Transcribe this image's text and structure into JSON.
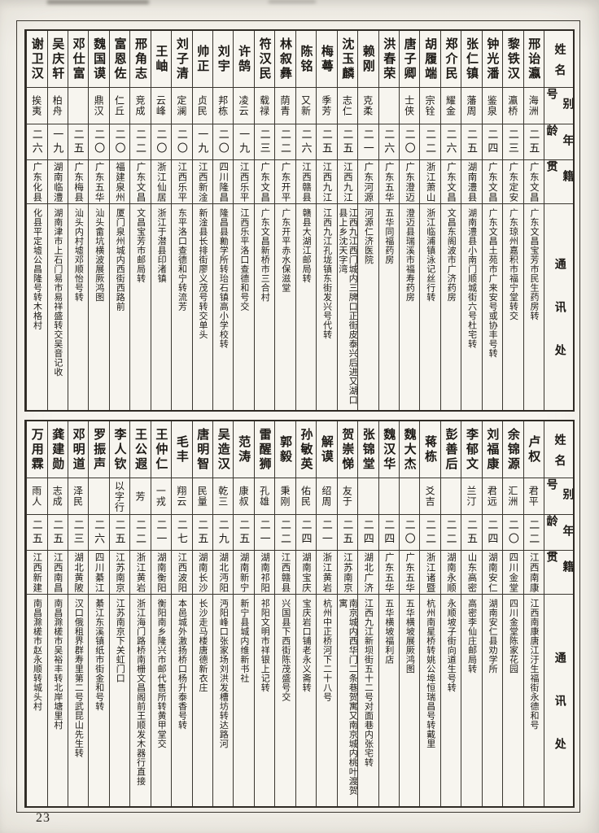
{
  "page": {
    "number": "23"
  },
  "headers": {
    "name": "姓名",
    "alias": "别号",
    "age": "年龄",
    "native": "籍贯",
    "address": "通讯处"
  },
  "sections": [
    {
      "people": [
        {
          "name": "邢诒瀛",
          "alias": "海洲",
          "age": "二五",
          "native": "广东文昌",
          "address": "广东文昌宝芳市民生药房转"
        },
        {
          "name": "黎铁汉",
          "alias": "瀛桥",
          "age": "二三",
          "native": "广东定安",
          "address": "广东琼州嘉积市福宁堂转交"
        },
        {
          "name": "钟光潘",
          "alias": "鉴泉",
          "age": "二四",
          "native": "广东文昌",
          "address": "广东文昌土苑市广来安号或协丰号转"
        },
        {
          "name": "张仁镇",
          "alias": "藩周",
          "age": "二五",
          "native": "湖南澧县",
          "address": "湖南澧县小南门顺城街六号杜宅转"
        },
        {
          "name": "郑介民",
          "alias": "耀金",
          "age": "二六",
          "native": "广东文昌",
          "address": "文昌东阁波市广济药房"
        },
        {
          "name": "胡履端",
          "alias": "宗铨",
          "age": "二二",
          "native": "浙江萧山",
          "address": "浙江临浦镇泳记丝行转"
        },
        {
          "name": "唐子卿",
          "alias": "士侠",
          "age": "二〇",
          "native": "广东澄迈",
          "address": "澄迈县瑞溪市福寿药房"
        },
        {
          "name": "洪春荣",
          "alias": "",
          "age": "二六",
          "native": "广东五华",
          "address": "五华同福药房"
        },
        {
          "name": "赖刚",
          "alias": "克柔",
          "age": "二一",
          "native": "广东河源",
          "address": "河源仁济医院"
        },
        {
          "name": "沈玉麟",
          "alias": "志仁",
          "age": "二五",
          "native": "江西九江",
          "address": "江西九江西门城内三牌口正街皮泰兴后进又湖口县上乡沈天字湾"
        },
        {
          "name": "梅蕚",
          "alias": "季芳",
          "age": "二五",
          "native": "江西九江",
          "address": "江西九江孔垅镇东街发兴号代转"
        },
        {
          "name": "陈铭",
          "alias": "又新",
          "age": "二六",
          "native": "江西赣县",
          "address": "赣县大湖江邮局转"
        },
        {
          "name": "林叙彝",
          "alias": "荫青",
          "age": "二二",
          "native": "广东开平",
          "address": "广东开平赤水保滋堂"
        },
        {
          "name": "符汉民",
          "alias": "载禄",
          "age": "二三",
          "native": "广东文昌",
          "address": "广东文昌新桥市三合村"
        },
        {
          "name": "许鹄",
          "alias": "凌云",
          "age": "一九",
          "native": "江西乐平",
          "address": "江西乐平洛口查德和号交"
        },
        {
          "name": "刘宇",
          "alias": "邦栋",
          "age": "二〇",
          "native": "四川隆昌",
          "address": "隆昌县勷学所转珆石镇高小学校转"
        },
        {
          "name": "帅正",
          "alias": "贞民",
          "age": "一九",
          "native": "江西新淦",
          "address": "新淦县长排街廖义茂号转交单头"
        },
        {
          "name": "刘子清",
          "alias": "定澜",
          "age": "二〇",
          "native": "江西乐平",
          "address": "东平洛口查德和宁转流芳"
        },
        {
          "name": "王岫",
          "alias": "云峰",
          "age": "二〇",
          "native": "浙江仙居",
          "address": "浙江于潜县印渚镇"
        },
        {
          "name": "邢角志",
          "alias": "竞成",
          "age": "二二",
          "native": "广东文昌",
          "address": "文昌宝芳市邮局转"
        },
        {
          "name": "富恩佐",
          "alias": "仁丘",
          "age": "二〇",
          "native": "福建泉州",
          "address": "厦门泉州城内西街西路前"
        },
        {
          "name": "魏国谟",
          "alias": "鼎汉",
          "age": "二〇",
          "native": "广东五华",
          "address": "汕头畲坑横波展厥鸿图"
        },
        {
          "name": "邓仕富",
          "alias": "",
          "age": "二五",
          "native": "广东梅县",
          "address": "汕头内村墟邓顺怡号转"
        },
        {
          "name": "吴庆轩",
          "alias": "柏舟",
          "age": "一九",
          "native": "湖南临澧",
          "address": "湖南津市上石门易市易祥盛转交吴音记收"
        },
        {
          "name": "谢卫汉",
          "alias": "挨夷",
          "age": "二六",
          "native": "广东化县",
          "address": "化县平定墟公昌隆号转木格村"
        }
      ]
    },
    {
      "people": [
        {
          "name": "卢权",
          "alias": "君平",
          "age": "二二",
          "native": "江西南康",
          "address": "江西南康唐江汙生福街永德和号"
        },
        {
          "name": "余锦源",
          "alias": "汇洲",
          "age": "二〇",
          "native": "四川金堂",
          "address": "四川金堂陈家花园"
        },
        {
          "name": "刘福康",
          "alias": "君远",
          "age": "二四",
          "native": "湖南安仁",
          "address": "湖南安仁县劝学所"
        },
        {
          "name": "李郁文",
          "alias": "兰汀",
          "age": "二五",
          "native": "山东高密",
          "address": "高密李仙庄邮局转"
        },
        {
          "name": "彭善后",
          "alias": "",
          "age": "二二",
          "native": "湖南永顺",
          "address": "永顺坡子街向道生号转"
        },
        {
          "name": "蒋栋",
          "alias": "爻吉",
          "age": "二二",
          "native": "浙江诸暨",
          "address": "杭州南星桥转姚公埠恒瑞昌号转戴里"
        },
        {
          "name": "魏大杰",
          "alias": "",
          "age": "二〇",
          "native": "广东五华",
          "address": "五华横坡展厥鸿图"
        },
        {
          "name": "魏汉华",
          "alias": "",
          "age": "二四",
          "native": "广东五华",
          "address": "五华横坡福利店"
        },
        {
          "name": "张锦堂",
          "alias": "",
          "age": "二四",
          "native": "湖北广济",
          "address": "江西九江新坝街五十二号对面巷内张宅转"
        },
        {
          "name": "贺崇悌",
          "alias": "友于",
          "age": "二五",
          "native": "江苏南京",
          "address": "南京城内西华门二条巷贺寓又南京城内桃叶渡贺寓"
        },
        {
          "name": "解谟",
          "alias": "绍周",
          "age": "二一",
          "native": "浙江黄岩",
          "address": "杭州中正桥河下二十八号"
        },
        {
          "name": "孙敏英",
          "alias": "佑民",
          "age": "二四",
          "native": "湖南宝庆",
          "address": "宝庆岩口铺老永义斋转"
        },
        {
          "name": "郭毅",
          "alias": "秉刚",
          "age": "二二",
          "native": "江西赣县",
          "address": "兴国县下西街陈茂盛号交"
        },
        {
          "name": "雷醒狮",
          "alias": "孔雄",
          "age": "二一",
          "native": "湖南祁阳",
          "address": "祁阳文明市祥银上记转"
        },
        {
          "name": "范涛",
          "alias": "康叔",
          "age": "二五",
          "native": "湖南新宁",
          "address": "新宁县城内维新书社"
        },
        {
          "name": "吴造汉",
          "alias": "乾三",
          "age": "二九",
          "native": "湖北沔阳",
          "address": "沔阳峰口张家场刘洪发槽坊转达路河"
        },
        {
          "name": "唐明智",
          "alias": "民量",
          "age": "二五",
          "native": "湖南长沙",
          "address": "长沙走马楼唐德新衣庄"
        },
        {
          "name": "毛丰",
          "alias": "翔云",
          "age": "二七",
          "native": "江西波阳",
          "address": "本邑城外激扬桥口杨升泰香号转"
        },
        {
          "name": "王仲仁",
          "alias": "一戎",
          "age": "二一",
          "native": "湖南衡阳",
          "address": "衡阳南乡隆兴市邮代售所转黄甲堂交"
        },
        {
          "name": "王公遐",
          "alias": "芳",
          "age": "二二",
          "native": "浙江黄岩",
          "address": "浙江海门路桥南栅文昌阁前王顺发木器行直接"
        },
        {
          "name": "李人钦",
          "alias": "以字行",
          "age": "二五",
          "native": "江苏南京",
          "address": "江苏南京下关虹门口"
        },
        {
          "name": "罗振声",
          "alias": "",
          "age": "二六",
          "native": "四川綦江",
          "address": "綦江东溪镇纸市街金和号转"
        },
        {
          "name": "邓明道",
          "alias": "泽民",
          "age": "二三",
          "native": "湖北黄陂",
          "address": "汉口俄租界群寿里第二号武昆山先生转"
        },
        {
          "name": "龚建勋",
          "alias": "志成",
          "age": "二五",
          "native": "江西南昌",
          "address": "南昌滁槎市吴裕丰转北岸塘里村"
        },
        {
          "name": "万用霖",
          "alias": "雨人",
          "age": "二五",
          "native": "江西新建",
          "address": "南昌滁槎市赵永顺转城头村"
        }
      ]
    }
  ]
}
